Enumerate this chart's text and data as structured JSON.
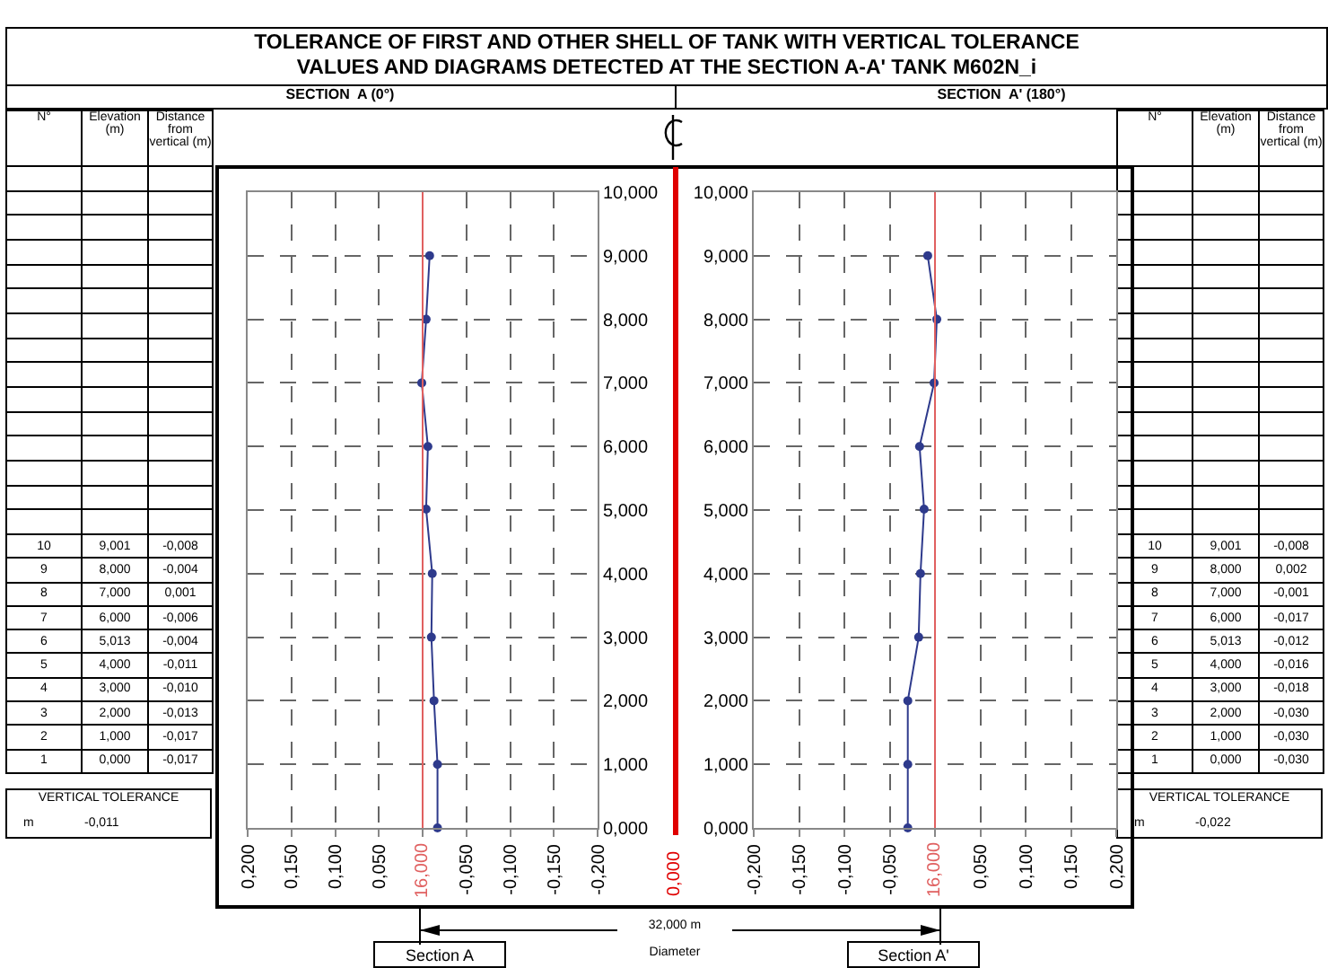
{
  "chart_data": [
    {
      "type": "line",
      "title": "TOLERANCE OF FIRST AND OTHER SHELL OF TANK WITH VERTICAL TOLERANCE\nVALUES AND DIAGRAMS DETECTED AT THE SECTION A-A' TANK M602N_i",
      "subtitle": "SECTION  A (0°)",
      "x": [
        -0.008,
        -0.004,
        0.001,
        -0.006,
        -0.004,
        -0.011,
        -0.01,
        -0.013,
        -0.017,
        -0.017
      ],
      "values": [
        9.001,
        8,
        7,
        6,
        5.013,
        4,
        3,
        2,
        1,
        0
      ],
      "color": "#2e3a8c",
      "marker": "circle",
      "line_style": "solid",
      "grid": true,
      "xlim": [
        0.2,
        -0.2
      ],
      "xticks": [
        {
          "value": 0.2,
          "label": "0,200"
        },
        {
          "value": 0.15,
          "label": "0,150"
        },
        {
          "value": 0.1,
          "label": "0,100"
        },
        {
          "value": 0.05,
          "label": "0,050"
        },
        {
          "value": 0,
          "label": null
        },
        {
          "value": -0.05,
          "label": "-0,050"
        },
        {
          "value": -0.1,
          "label": "-0,100"
        },
        {
          "value": -0.15,
          "label": "-0,150"
        },
        {
          "value": -0.2,
          "label": "-0,200"
        }
      ],
      "ylim": [
        0,
        10
      ],
      "yticks": [
        {
          "value": 0,
          "label": "0,000"
        },
        {
          "value": 1,
          "label": "1,000"
        },
        {
          "value": 2,
          "label": "2,000"
        },
        {
          "value": 3,
          "label": "3,000"
        },
        {
          "value": 4,
          "label": "4,000"
        },
        {
          "value": 5,
          "label": "5,000"
        },
        {
          "value": 6,
          "label": "6,000"
        },
        {
          "value": 7,
          "label": "7,000"
        },
        {
          "value": 8,
          "label": "8,000"
        },
        {
          "value": 9,
          "label": "9,000"
        },
        {
          "value": 10,
          "label": "10,000"
        }
      ],
      "ref_lines": [
        {
          "axis": "x",
          "value": 0,
          "color": "#e06060"
        }
      ],
      "annotations": [
        "N°",
        "Elevation (m)",
        "Distance from vertical (m)",
        "10",
        "9,001",
        "-0,008",
        "9",
        "8,000",
        "-0,004",
        "8",
        "7,000",
        "0,001",
        "7",
        "6,000",
        "-0,006",
        "6",
        "5,013",
        "-0,004",
        "5",
        "4,000",
        "-0,011",
        "4",
        "3,000",
        "-0,010",
        "3",
        "2,000",
        "-0,013",
        "2",
        "1,000",
        "-0,017",
        "1",
        "0,000",
        "-0,017",
        "16,000",
        "VERTICAL TOLERANCE",
        "m",
        "-0,011",
        "Section A",
        "32,000 m",
        "Diameter",
        "0,000"
      ]
    },
    {
      "type": "line",
      "subtitle": "SECTION  A' (180°)",
      "x": [
        -0.008,
        0.002,
        -0.001,
        -0.017,
        -0.012,
        -0.016,
        -0.018,
        -0.03,
        -0.03,
        -0.03
      ],
      "values": [
        9.001,
        8,
        7,
        6,
        5.013,
        4,
        3,
        2,
        1,
        0
      ],
      "color": "#2e3a8c",
      "marker": "circle",
      "line_style": "solid",
      "grid": true,
      "xlim": [
        -0.2,
        0.2
      ],
      "xticks": [
        {
          "value": -0.2,
          "label": "-0,200"
        },
        {
          "value": -0.15,
          "label": "-0,150"
        },
        {
          "value": -0.1,
          "label": "-0,100"
        },
        {
          "value": -0.05,
          "label": "-0,050"
        },
        {
          "value": 0,
          "label": null
        },
        {
          "value": 0.05,
          "label": "0,050"
        },
        {
          "value": 0.1,
          "label": "0,100"
        },
        {
          "value": 0.15,
          "label": "0,150"
        },
        {
          "value": 0.2,
          "label": "0,200"
        }
      ],
      "ylim": [
        0,
        10
      ],
      "yticks": [
        {
          "value": 0,
          "label": "0,000"
        },
        {
          "value": 1,
          "label": "1,000"
        },
        {
          "value": 2,
          "label": "2,000"
        },
        {
          "value": 3,
          "label": "3,000"
        },
        {
          "value": 4,
          "label": "4,000"
        },
        {
          "value": 5,
          "label": "5,000"
        },
        {
          "value": 6,
          "label": "6,000"
        },
        {
          "value": 7,
          "label": "7,000"
        },
        {
          "value": 8,
          "label": "8,000"
        },
        {
          "value": 9,
          "label": "9,000"
        },
        {
          "value": 10,
          "label": "10,000"
        }
      ],
      "ref_lines": [
        {
          "axis": "x",
          "value": 0,
          "color": "#e06060"
        }
      ],
      "annotations": [
        "N°",
        "Elevation (m)",
        "Distance from vertical (m)",
        "10",
        "9,001",
        "-0,008",
        "9",
        "8,000",
        "0,002",
        "8",
        "7,000",
        "-0,001",
        "7",
        "6,000",
        "-0,017",
        "6",
        "5,013",
        "-0,012",
        "5",
        "4,000",
        "-0,016",
        "4",
        "3,000",
        "-0,018",
        "3",
        "2,000",
        "-0,030",
        "2",
        "1,000",
        "-0,030",
        "1",
        "0,000",
        "-0,030",
        "16,000",
        "VERTICAL TOLERANCE",
        "m",
        "-0,022",
        "Section A'"
      ]
    }
  ]
}
